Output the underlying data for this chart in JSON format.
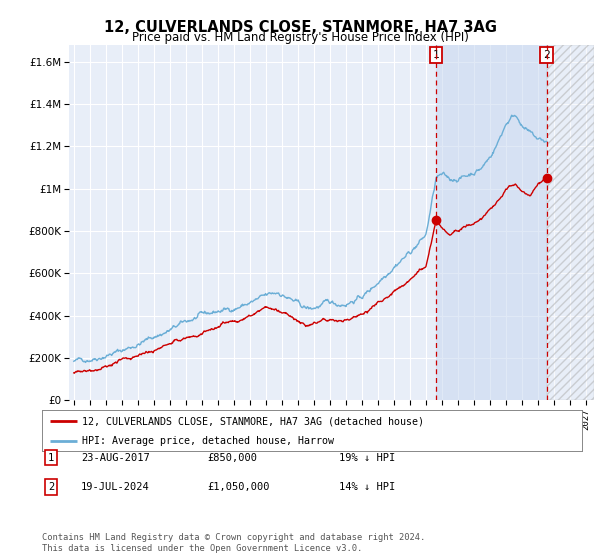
{
  "title": "12, CULVERLANDS CLOSE, STANMORE, HA7 3AG",
  "subtitle": "Price paid vs. HM Land Registry's House Price Index (HPI)",
  "ytick_values": [
    0,
    200000,
    400000,
    600000,
    800000,
    1000000,
    1200000,
    1400000,
    1600000
  ],
  "ylim": [
    0,
    1680000
  ],
  "hpi_color": "#6baed6",
  "price_color": "#cc0000",
  "bg_color": "#e8eef8",
  "grid_color": "#ffffff",
  "sale1_date": "23-AUG-2017",
  "sale1_price": 850000,
  "sale1_pct": "19% ↓ HPI",
  "sale2_date": "19-JUL-2024",
  "sale2_price": 1050000,
  "sale2_pct": "14% ↓ HPI",
  "legend_label1": "12, CULVERLANDS CLOSE, STANMORE, HA7 3AG (detached house)",
  "legend_label2": "HPI: Average price, detached house, Harrow",
  "footer1": "Contains HM Land Registry data © Crown copyright and database right 2024.",
  "footer2": "This data is licensed under the Open Government Licence v3.0.",
  "vline1_year": 2017.645,
  "vline2_year": 2024.54,
  "marker1_x": 2017.645,
  "marker1_y": 850000,
  "marker2_x": 2024.54,
  "marker2_y": 1050000,
  "xlim_left": 1994.7,
  "xlim_right": 2027.5
}
